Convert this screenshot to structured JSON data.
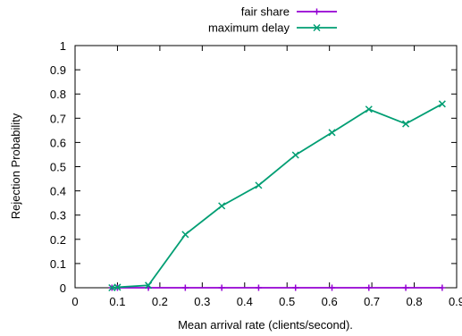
{
  "chart_data": {
    "type": "line",
    "title": "",
    "xlabel": "Mean arrival rate (clients/second).",
    "ylabel": "Rejection Probability",
    "xlim": [
      0,
      0.9
    ],
    "ylim": [
      0,
      1
    ],
    "xticks": [
      "0",
      "0.1",
      "0.2",
      "0.3",
      "0.4",
      "0.5",
      "0.6",
      "0.7",
      "0.8",
      "0.9"
    ],
    "yticks": [
      "0",
      "0.1",
      "0.2",
      "0.3",
      "0.4",
      "0.5",
      "0.6",
      "0.7",
      "0.8",
      "0.9",
      "1"
    ],
    "grid": false,
    "legend_position": "top-center, above plot",
    "series": [
      {
        "name": "fair share",
        "color": "#9400d3",
        "marker": "plus",
        "x": [
          0.087,
          0.1,
          0.173,
          0.26,
          0.346,
          0.433,
          0.52,
          0.606,
          0.693,
          0.78,
          0.866
        ],
        "y": [
          0,
          0,
          0,
          0,
          0,
          0,
          0,
          0,
          0,
          0,
          0
        ]
      },
      {
        "name": "maximum delay",
        "color": "#009e73",
        "marker": "cross",
        "x": [
          0.087,
          0.1,
          0.173,
          0.26,
          0.346,
          0.433,
          0.52,
          0.606,
          0.693,
          0.78,
          0.866
        ],
        "y": [
          0,
          0.002,
          0.01,
          0.22,
          0.338,
          0.423,
          0.548,
          0.641,
          0.737,
          0.677,
          0.759
        ]
      }
    ]
  }
}
